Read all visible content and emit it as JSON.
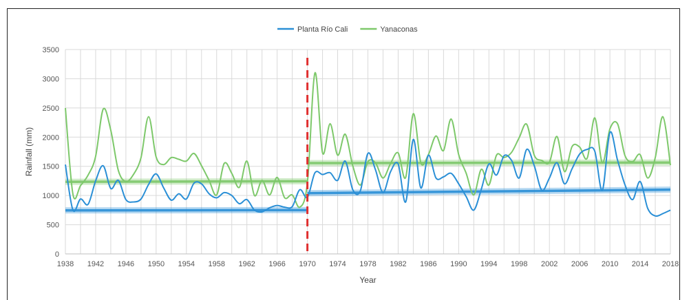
{
  "chart_data": {
    "type": "line",
    "xlabel": "Year",
    "ylabel": "Rainfall (mm)",
    "xlim": [
      1938,
      2018
    ],
    "ylim": [
      0,
      3500
    ],
    "x_ticks": [
      1938,
      1942,
      1946,
      1950,
      1954,
      1958,
      1962,
      1966,
      1970,
      1974,
      1978,
      1982,
      1986,
      1990,
      1994,
      1998,
      2002,
      2006,
      2010,
      2014,
      2018
    ],
    "y_ticks": [
      0,
      500,
      1000,
      1500,
      2000,
      2500,
      3000,
      3500
    ],
    "grid": true,
    "legend_position": "top-center",
    "change_point_year": 1970,
    "change_point_color": "#e03030",
    "series": [
      {
        "name": "Planta Río Cali",
        "color": "#2a8fd6",
        "x": [
          1938,
          1939,
          1940,
          1941,
          1942,
          1943,
          1944,
          1945,
          1946,
          1947,
          1948,
          1949,
          1950,
          1951,
          1952,
          1953,
          1954,
          1955,
          1956,
          1957,
          1958,
          1959,
          1960,
          1961,
          1962,
          1963,
          1964,
          1965,
          1966,
          1967,
          1968,
          1969,
          1970,
          1971,
          1972,
          1973,
          1974,
          1975,
          1976,
          1977,
          1978,
          1979,
          1980,
          1981,
          1982,
          1983,
          1984,
          1985,
          1986,
          1987,
          1988,
          1989,
          1990,
          1991,
          1992,
          1993,
          1994,
          1995,
          1996,
          1997,
          1998,
          1999,
          2000,
          2001,
          2002,
          2003,
          2004,
          2005,
          2006,
          2007,
          2008,
          2009,
          2010,
          2011,
          2012,
          2013,
          2014,
          2015,
          2016,
          2017,
          2018
        ],
        "values": [
          1530,
          750,
          940,
          850,
          1250,
          1510,
          1120,
          1260,
          930,
          890,
          940,
          1190,
          1370,
          1130,
          920,
          1030,
          940,
          1210,
          1200,
          1030,
          960,
          1050,
          1000,
          860,
          930,
          750,
          720,
          790,
          830,
          800,
          810,
          1100,
          970,
          1390,
          1360,
          1390,
          1260,
          1590,
          1100,
          1080,
          1720,
          1440,
          1050,
          1410,
          1540,
          890,
          1960,
          1130,
          1690,
          1300,
          1320,
          1380,
          1200,
          980,
          750,
          1110,
          1540,
          1350,
          1680,
          1600,
          1300,
          1790,
          1510,
          1090,
          1300,
          1560,
          1200,
          1460,
          1710,
          1790,
          1760,
          1090,
          2080,
          1610,
          1180,
          930,
          1240,
          780,
          650,
          690,
          750
        ]
      },
      {
        "name": "Yanaconas",
        "color": "#7dc86a",
        "x": [
          1938,
          1939,
          1940,
          1941,
          1942,
          1943,
          1944,
          1945,
          1946,
          1947,
          1948,
          1949,
          1950,
          1951,
          1952,
          1953,
          1954,
          1955,
          1956,
          1957,
          1958,
          1959,
          1960,
          1961,
          1962,
          1963,
          1964,
          1965,
          1966,
          1967,
          1968,
          1969,
          1970,
          1971,
          1972,
          1973,
          1974,
          1975,
          1976,
          1977,
          1978,
          1979,
          1980,
          1981,
          1982,
          1983,
          1984,
          1985,
          1986,
          1987,
          1988,
          1989,
          1990,
          1991,
          1992,
          1993,
          1994,
          1995,
          1996,
          1997,
          1998,
          1999,
          2000,
          2001,
          2002,
          2003,
          2004,
          2005,
          2006,
          2007,
          2008,
          2009,
          2010,
          2011,
          2012,
          2013,
          2014,
          2015,
          2016,
          2017,
          2018
        ],
        "values": [
          2500,
          1020,
          1170,
          1350,
          1670,
          2480,
          2120,
          1430,
          1240,
          1360,
          1650,
          2350,
          1660,
          1530,
          1650,
          1620,
          1590,
          1720,
          1510,
          1260,
          1010,
          1550,
          1380,
          1140,
          1590,
          1000,
          1260,
          1010,
          1310,
          960,
          1010,
          800,
          1220,
          3100,
          1730,
          2230,
          1690,
          2050,
          1510,
          1180,
          1580,
          1560,
          1300,
          1550,
          1730,
          1310,
          2400,
          1560,
          1700,
          2020,
          1770,
          2310,
          1700,
          1380,
          1010,
          1450,
          1180,
          1690,
          1650,
          1740,
          1990,
          2220,
          1690,
          1600,
          1570,
          2010,
          1410,
          1840,
          1830,
          1640,
          2330,
          1560,
          2140,
          2230,
          1680,
          1580,
          1700,
          1300,
          1650,
          2350,
          1520
        ]
      }
    ],
    "mean_segments": [
      {
        "series": "Planta Río Cali",
        "x0": 1938,
        "x1": 1970,
        "y0": 745,
        "y1": 750
      },
      {
        "series": "Planta Río Cali",
        "x0": 1970,
        "x1": 2018,
        "y0": 1040,
        "y1": 1100
      },
      {
        "series": "Yanaconas",
        "x0": 1938,
        "x1": 1970,
        "y0": 1235,
        "y1": 1245
      },
      {
        "series": "Yanaconas",
        "x0": 1970,
        "x1": 2018,
        "y0": 1555,
        "y1": 1565
      }
    ]
  }
}
